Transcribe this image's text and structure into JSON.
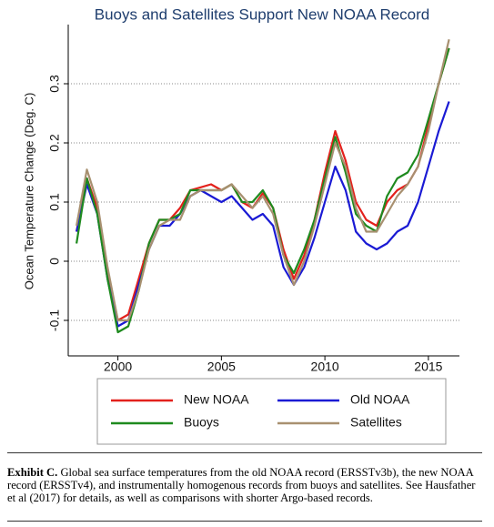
{
  "chart_data": {
    "type": "line",
    "title": "Buoys and Satellites Support New NOAA Record",
    "y_label": "Ocean Temperature Change (Deg. C)",
    "x": [
      1998.0,
      1998.5,
      1999.0,
      1999.5,
      2000.0,
      2000.5,
      2001.0,
      2001.5,
      2002.0,
      2002.5,
      2003.0,
      2003.5,
      2004.0,
      2004.5,
      2005.0,
      2005.5,
      2006.0,
      2006.5,
      2007.0,
      2007.5,
      2008.0,
      2008.5,
      2009.0,
      2009.5,
      2010.0,
      2010.5,
      2011.0,
      2011.5,
      2012.0,
      2012.5,
      2013.0,
      2013.5,
      2014.0,
      2014.5,
      2015.0,
      2015.5,
      2016.0
    ],
    "series": [
      {
        "name": "New NOAA",
        "color": "#e3211c",
        "values": [
          0.05,
          0.14,
          0.09,
          -0.02,
          -0.1,
          -0.09,
          -0.03,
          0.03,
          0.07,
          0.07,
          0.09,
          0.12,
          0.125,
          0.13,
          0.12,
          0.13,
          0.1,
          0.09,
          0.115,
          0.09,
          0.02,
          -0.03,
          0.01,
          0.07,
          0.15,
          0.22,
          0.17,
          0.1,
          0.07,
          0.06,
          0.1,
          0.12,
          0.13,
          0.16,
          0.23,
          0.3,
          0.36
        ]
      },
      {
        "name": "Old NOAA",
        "color": "#1a1ad4",
        "values": [
          0.05,
          0.13,
          0.08,
          -0.03,
          -0.11,
          -0.1,
          -0.04,
          0.02,
          0.06,
          0.06,
          0.08,
          0.11,
          0.12,
          0.11,
          0.1,
          0.11,
          0.09,
          0.07,
          0.08,
          0.06,
          -0.01,
          -0.04,
          -0.01,
          0.04,
          0.1,
          0.16,
          0.12,
          0.05,
          0.03,
          0.02,
          0.03,
          0.05,
          0.06,
          0.1,
          0.16,
          0.22,
          0.27
        ]
      },
      {
        "name": "Buoys",
        "color": "#1e8a1e",
        "values": [
          0.03,
          0.14,
          0.08,
          -0.03,
          -0.12,
          -0.11,
          -0.05,
          0.03,
          0.07,
          0.07,
          0.08,
          0.12,
          0.12,
          0.12,
          0.12,
          0.13,
          0.1,
          0.1,
          0.12,
          0.09,
          0.01,
          -0.02,
          0.02,
          0.07,
          0.14,
          0.21,
          0.15,
          0.08,
          0.06,
          0.05,
          0.11,
          0.14,
          0.15,
          0.18,
          0.24,
          0.3,
          0.36
        ]
      },
      {
        "name": "Satellites",
        "color": "#a89070",
        "values": [
          0.06,
          0.155,
          0.1,
          -0.01,
          -0.1,
          -0.1,
          -0.05,
          0.02,
          0.06,
          0.07,
          0.07,
          0.11,
          0.12,
          0.12,
          0.12,
          0.13,
          0.11,
          0.09,
          0.11,
          0.08,
          0.01,
          -0.04,
          0.0,
          0.06,
          0.13,
          0.2,
          0.16,
          0.09,
          0.05,
          0.05,
          0.08,
          0.11,
          0.13,
          0.16,
          0.22,
          0.3,
          0.375
        ]
      }
    ],
    "xlim": [
      1997.6,
      2016.5
    ],
    "xticks": [
      2000,
      2005,
      2010,
      2015
    ],
    "ylim": [
      -0.16,
      0.4
    ],
    "yticks": [
      -0.1,
      0,
      0.1,
      0.2,
      0.3
    ],
    "grid": true
  },
  "caption": {
    "label": "Exhibit C.",
    "text": "Global sea surface temperatures from the old NOAA record (ERSSTv3b), the new NOAA record (ERSSTv4), and instrumentally homogenous records from buoys and satellites. See Hausfather et al (2017) for details, as well as comparisons with shorter Argo-based records."
  }
}
